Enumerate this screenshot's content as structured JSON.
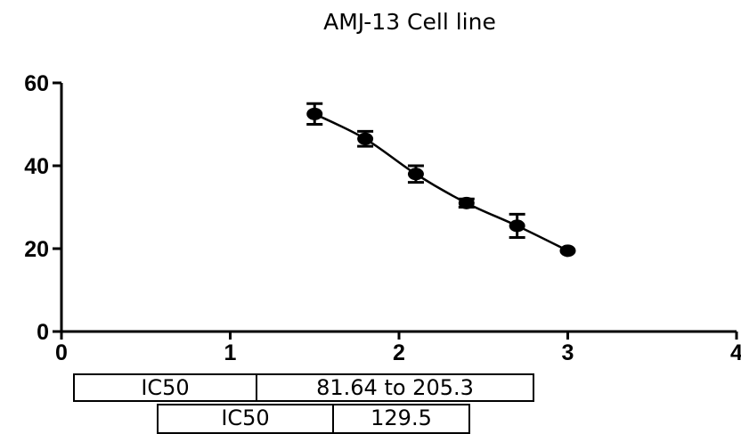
{
  "chart_data": {
    "type": "scatter",
    "title": "AMJ-13 Cell line",
    "xlabel": "",
    "ylabel": "",
    "xlim": [
      0,
      4
    ],
    "ylim": [
      0,
      60
    ],
    "x_ticks": [
      "0",
      "1",
      "2",
      "3",
      "4"
    ],
    "y_ticks": [
      "0",
      "20",
      "40",
      "60"
    ],
    "grid": false,
    "series": [
      {
        "points": [
          {
            "x": 1.5,
            "y": 52.5,
            "err": 2.5
          },
          {
            "x": 1.8,
            "y": 46.5,
            "err": 1.8
          },
          {
            "x": 2.1,
            "y": 38.0,
            "err": 2.0
          },
          {
            "x": 2.4,
            "y": 31.0,
            "err": 1.0
          },
          {
            "x": 2.7,
            "y": 25.5,
            "err": 2.8
          },
          {
            "x": 3.0,
            "y": 19.5,
            "err": 0
          }
        ],
        "fit_curve": true
      }
    ],
    "table": [
      {
        "label": "IC50",
        "value": "81.64 to 205.3"
      },
      {
        "label": "IC50",
        "value": "129.5"
      }
    ]
  }
}
